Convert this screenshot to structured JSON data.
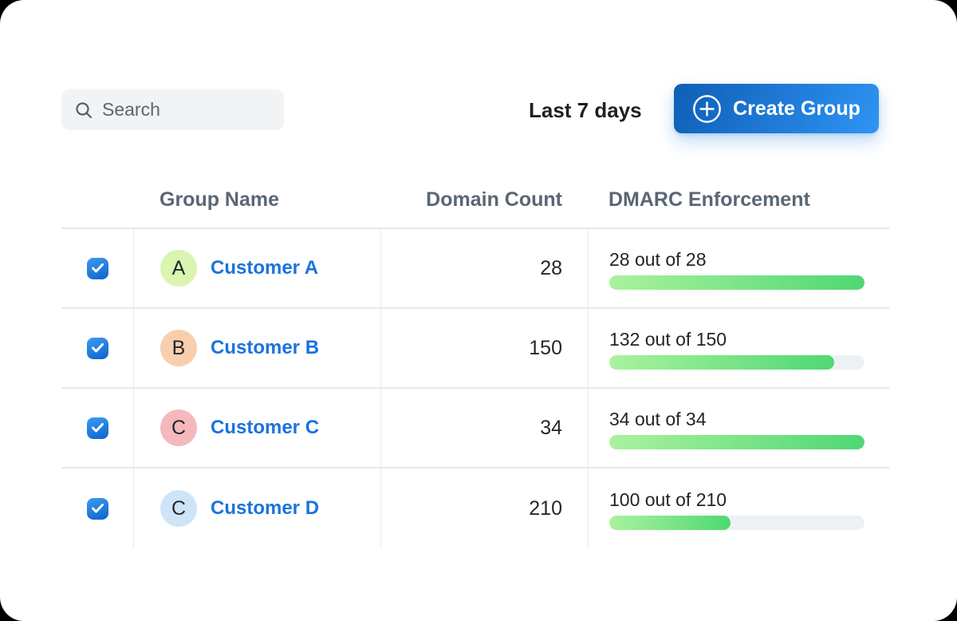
{
  "toolbar": {
    "search_placeholder": "Search",
    "date_range_label": "Last 7 days",
    "create_group_label": "Create Group"
  },
  "table": {
    "columns": [
      "Group Name",
      "Domain Count",
      "DMARC Enforcement"
    ],
    "rows": [
      {
        "selected": true,
        "avatar_letter": "A",
        "avatar_color": "#d9f5b0",
        "name": "Customer A",
        "domain_count": "28",
        "dmarc_label": "28 out of 28",
        "dmarc_enforced": 28,
        "dmarc_total": 28
      },
      {
        "selected": true,
        "avatar_letter": "B",
        "avatar_color": "#f8cfae",
        "name": "Customer B",
        "domain_count": "150",
        "dmarc_label": "132 out of 150",
        "dmarc_enforced": 132,
        "dmarc_total": 150
      },
      {
        "selected": true,
        "avatar_letter": "C",
        "avatar_color": "#f5b9bd",
        "name": "Customer C",
        "domain_count": "34",
        "dmarc_label": "34 out of 34",
        "dmarc_enforced": 34,
        "dmarc_total": 34
      },
      {
        "selected": true,
        "avatar_letter": "C",
        "avatar_color": "#cfe4f7",
        "name": "Customer D",
        "domain_count": "210",
        "dmarc_label": "100 out of 210",
        "dmarc_enforced": 100,
        "dmarc_total": 210
      }
    ]
  },
  "colors": {
    "button-gradient-start": "#0e5eb6",
    "button-gradient-end": "#2e94f4",
    "checkbox-gradient-start": "#3b9bf4",
    "checkbox-gradient-end": "#0f63c8",
    "link-blue": "#1b73dd",
    "progress-start": "#aaf29e",
    "progress-end": "#4fd873",
    "progress-track": "#eef1f4"
  }
}
